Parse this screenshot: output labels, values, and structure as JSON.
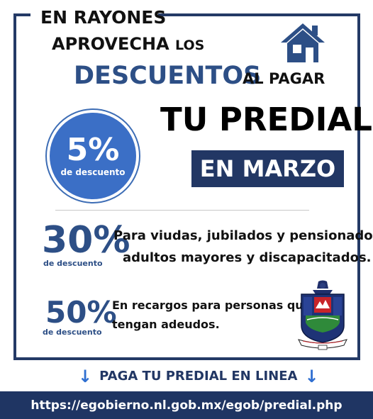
{
  "headline": {
    "line1": "EN RAYONES",
    "line2_main": "APROVECHA",
    "line2_small": "LOS",
    "line3_main": "DESCUENTOS",
    "line3_small": "AL PAGAR",
    "line4": "TU PREDIAL",
    "month_banner": "EN MARZO"
  },
  "discount_badge": {
    "percent": "5%",
    "label": "de descuento"
  },
  "offers": [
    {
      "percent": "30%",
      "label": "de descuento",
      "desc_line1": "Para viudas, jubilados y pensionados",
      "desc_line2": "adultos mayores y discapacitados."
    },
    {
      "percent": "50%",
      "label": "de descuento",
      "desc_line1": "En recargos para personas que",
      "desc_line2": "tengan adeudos."
    }
  ],
  "pay_online": {
    "arrow_left": "↓",
    "text": "PAGA TU PREDIAL EN LINEA",
    "arrow_right": "↓"
  },
  "footer": {
    "url": "https://egobierno.nl.gob.mx/egob/predial.php"
  },
  "icons": {
    "house": "house-icon",
    "seal": "municipal-seal-icon"
  },
  "colors": {
    "navy": "#223764",
    "blue_text": "#2d4f86",
    "badge_blue": "#3b6fc6",
    "arrow_blue": "#2f6fd1"
  }
}
